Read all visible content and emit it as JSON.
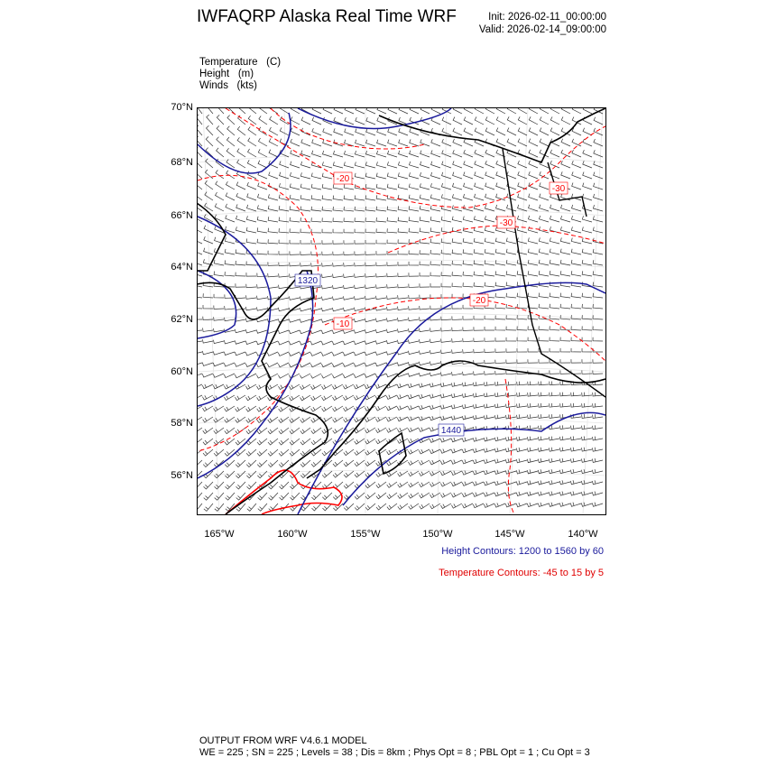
{
  "header": {
    "title": "IWFAQRP Alaska Real Time WRF",
    "init": "Init: 2026-02-11_00:00:00",
    "valid": "Valid: 2026-02-14_09:00:00"
  },
  "fields": [
    {
      "name": "Temperature",
      "unit": "(C)"
    },
    {
      "name": "Height",
      "unit": "(m)"
    },
    {
      "name": "Winds",
      "unit": "(kts)"
    }
  ],
  "map": {
    "lat_labels": [
      "70°N",
      "68°N",
      "66°N",
      "64°N",
      "62°N",
      "60°N",
      "58°N",
      "56°N"
    ],
    "lon_labels": [
      "165°W",
      "160°W",
      "155°W",
      "150°W",
      "145°W",
      "140°W"
    ],
    "height_contour_labels": [
      "1320",
      "1440"
    ],
    "temperature_contour_labels": [
      "-20",
      "-30",
      "-30",
      "-10",
      "-20"
    ],
    "colors": {
      "height": "#1a1a9c",
      "temperature": "#ff0000",
      "coast": "#000000",
      "barbs": "#333333"
    }
  },
  "legend": {
    "height": "Height Contours: 1200 to 1560 by 60",
    "temperature": "Temperature Contours: -45 to 15 by 5"
  },
  "footer": {
    "line1": "OUTPUT FROM WRF V4.6.1 MODEL",
    "line2": "WE = 225 ; SN = 225 ; Levels = 38 ; Dis = 8km ; Phys Opt = 8 ; PBL Opt = 1 ; Cu Opt = 3"
  }
}
